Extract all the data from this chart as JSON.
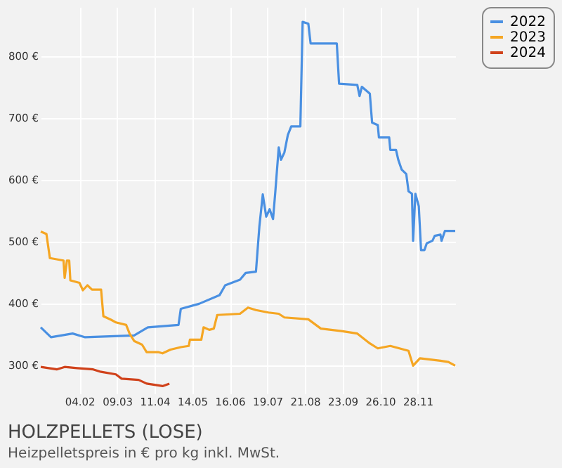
{
  "chart_data": {
    "type": "line",
    "title": "HOLZPELLETS (LOSE)",
    "subtitle": "Heizpelletspreis in € pro kg inkl. MwSt.",
    "xlim": [
      "--01-01",
      "--12-31"
    ],
    "xticks": [
      {
        "value": "--02-04",
        "label": "04.02"
      },
      {
        "value": "--03-09",
        "label": "09.03"
      },
      {
        "value": "--04-11",
        "label": "11.04"
      },
      {
        "value": "--05-14",
        "label": "14.05"
      },
      {
        "value": "--06-16",
        "label": "16.06"
      },
      {
        "value": "--07-19",
        "label": "19.07"
      },
      {
        "value": "--08-21",
        "label": "21.08"
      },
      {
        "value": "--09-23",
        "label": "23.09"
      },
      {
        "value": "--10-26",
        "label": "26.10"
      },
      {
        "value": "--11-28",
        "label": "28.11"
      }
    ],
    "ylim": [
      255,
      880
    ],
    "yticks": [
      {
        "value": 300,
        "label": "300 €"
      },
      {
        "value": 400,
        "label": "400 €"
      },
      {
        "value": 500,
        "label": "500 €"
      },
      {
        "value": 600,
        "label": "600 €"
      },
      {
        "value": 700,
        "label": "700 €"
      },
      {
        "value": 800,
        "label": "800 €"
      }
    ],
    "grid": true,
    "legend": "right",
    "line_style": "solid",
    "marker": "none",
    "series": [
      {
        "name": "2022",
        "color": "#4a90e2",
        "x": [
          "--01-01",
          "--01-10",
          "--01-29",
          "--02-09",
          "--03-24",
          "--04-05",
          "--05-02",
          "--05-04",
          "--05-20",
          "--06-07",
          "--06-12",
          "--06-25",
          "--06-30",
          "--07-09",
          "--07-12",
          "--07-15",
          "--07-18",
          "--07-21",
          "--07-24",
          "--07-26",
          "--07-29",
          "--07-31",
          "--08-03",
          "--08-06",
          "--08-09",
          "--08-17",
          "--08-19",
          "--08-24",
          "--08-26",
          "--09-18",
          "--09-20",
          "--10-06",
          "--10-08",
          "--10-10",
          "--10-17",
          "--10-19",
          "--10-24",
          "--10-25",
          "--11-03",
          "--11-04",
          "--11-09",
          "--11-11",
          "--11-14",
          "--11-18",
          "--11-20",
          "--11-23",
          "--11-24",
          "--11-26",
          "--11-29",
          "--12-01",
          "--12-04",
          "--12-06",
          "--12-11",
          "--12-13",
          "--12-18",
          "--12-19",
          "--12-22",
          "--12-31"
        ],
        "values": [
          362,
          346,
          352,
          346,
          349,
          362,
          366,
          392,
          400,
          414,
          430,
          439,
          450,
          452,
          525,
          577,
          541,
          553,
          537,
          581,
          653,
          633,
          645,
          673,
          687,
          687,
          856,
          853,
          821,
          821,
          756,
          754,
          736,
          751,
          740,
          693,
          689,
          669,
          669,
          649,
          649,
          633,
          617,
          610,
          582,
          578,
          502,
          578,
          558,
          487,
          487,
          498,
          502,
          510,
          512,
          502,
          518,
          518
        ]
      },
      {
        "name": "2023",
        "color": "#f5a623",
        "x": [
          "--01-01",
          "--01-06",
          "--01-09",
          "--01-21",
          "--01-22",
          "--01-24",
          "--01-26",
          "--01-27",
          "--02-04",
          "--02-07",
          "--02-11",
          "--02-15",
          "--02-23",
          "--02-25",
          "--03-04",
          "--03-08",
          "--03-17",
          "--03-20",
          "--03-24",
          "--03-31",
          "--04-04",
          "--04-14",
          "--04-18",
          "--04-25",
          "--05-04",
          "--05-11",
          "--05-12",
          "--05-22",
          "--05-24",
          "--05-29",
          "--06-02",
          "--06-05",
          "--06-25",
          "--07-02",
          "--07-09",
          "--07-20",
          "--07-29",
          "--08-03",
          "--08-24",
          "--09-04",
          "--09-22",
          "--10-06",
          "--10-17",
          "--10-24",
          "--11-04",
          "--11-20",
          "--11-24",
          "--11-30",
          "--12-09",
          "--12-18",
          "--12-25",
          "--12-31"
        ],
        "values": [
          517,
          513,
          474,
          470,
          442,
          470,
          470,
          438,
          434,
          422,
          430,
          423,
          423,
          380,
          374,
          370,
          366,
          352,
          340,
          334,
          322,
          322,
          320,
          326,
          330,
          332,
          342,
          342,
          362,
          358,
          360,
          382,
          384,
          394,
          390,
          386,
          384,
          378,
          375,
          360,
          356,
          352,
          336,
          328,
          332,
          324,
          300,
          312,
          310,
          308,
          306,
          300
        ]
      },
      {
        "name": "2024",
        "color": "#d0421b",
        "x": [
          "--01-01",
          "--01-15",
          "--01-22",
          "--02-02",
          "--02-16",
          "--02-23",
          "--03-08",
          "--03-13",
          "--03-28",
          "--04-04",
          "--04-18",
          "--04-21",
          "--04-24"
        ],
        "values": [
          298,
          294,
          298,
          296,
          294,
          290,
          286,
          279,
          277,
          271,
          267,
          269,
          271
        ]
      }
    ]
  }
}
